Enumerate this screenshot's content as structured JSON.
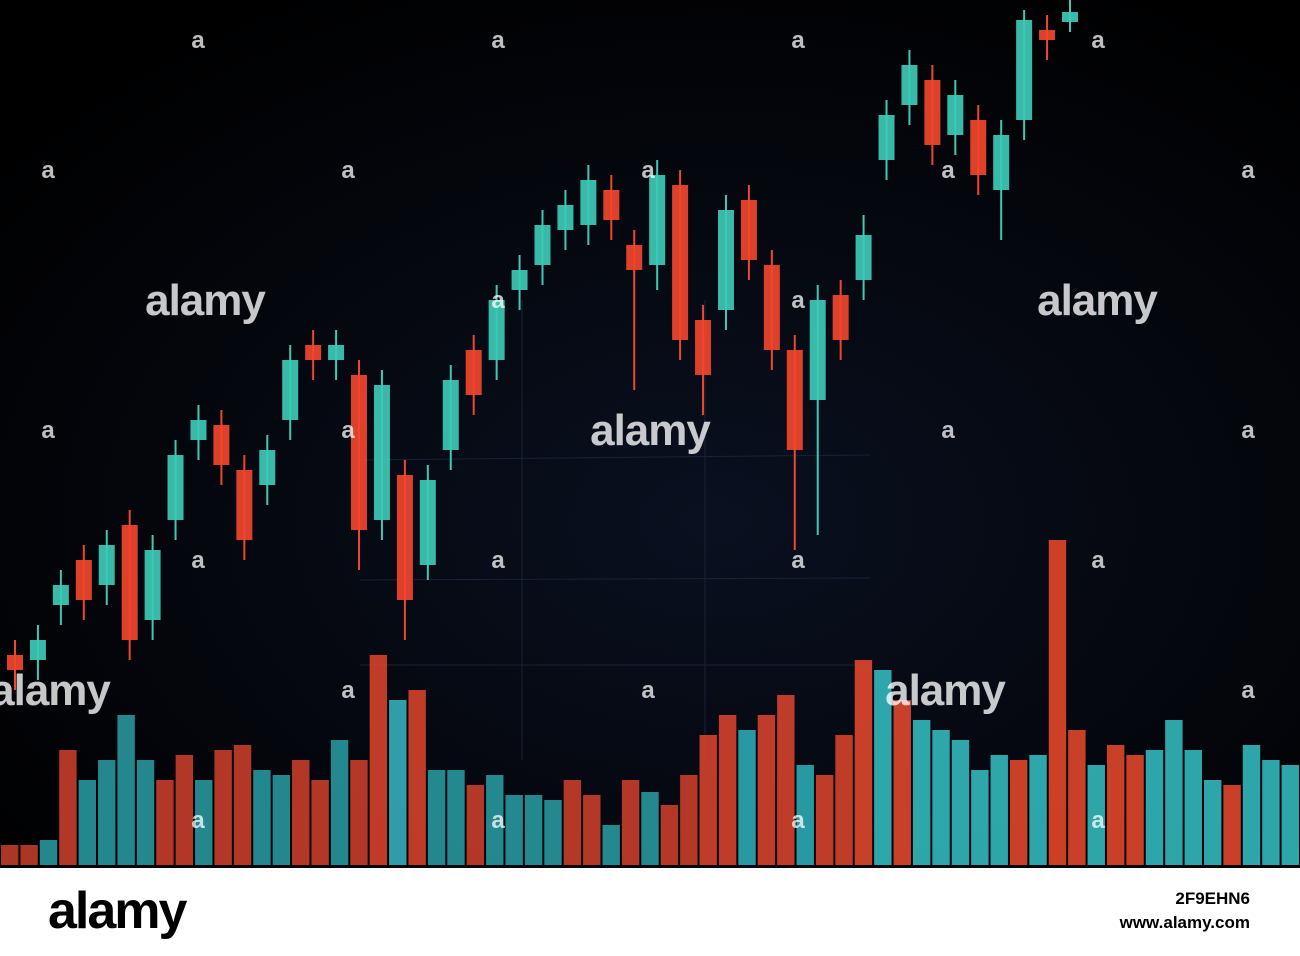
{
  "chart_data": [
    {
      "type": "candlestick",
      "up_color": "#3ec9b5",
      "down_color": "#f0462e",
      "ylim": [
        0,
        956
      ],
      "open": [
        301,
        296,
        351,
        396,
        371,
        431,
        336,
        436,
        516,
        531,
        486,
        471,
        536,
        611,
        596,
        581,
        436,
        481,
        391,
        506,
        606,
        596,
        666,
        691,
        726,
        731,
        766,
        711,
        691,
        771,
        636,
        646,
        756,
        691,
        606,
        556,
        661,
        676,
        796,
        851,
        876,
        821,
        836,
        766,
        836,
        926,
        934
      ],
      "high": [
        316,
        331,
        386,
        411,
        426,
        446,
        421,
        516,
        551,
        546,
        501,
        521,
        611,
        626,
        626,
        596,
        586,
        496,
        491,
        591,
        621,
        671,
        701,
        746,
        766,
        791,
        781,
        726,
        796,
        786,
        651,
        761,
        771,
        706,
        621,
        671,
        676,
        741,
        856,
        906,
        891,
        876,
        851,
        836,
        946,
        941,
        956
      ],
      "low": [
        266,
        276,
        331,
        336,
        351,
        296,
        316,
        416,
        496,
        471,
        396,
        451,
        516,
        576,
        576,
        386,
        416,
        316,
        376,
        486,
        541,
        576,
        646,
        671,
        706,
        711,
        716,
        566,
        666,
        596,
        541,
        626,
        676,
        586,
        406,
        421,
        596,
        656,
        776,
        831,
        791,
        801,
        761,
        716,
        816,
        896,
        924
      ],
      "close": [
        286,
        316,
        371,
        356,
        411,
        316,
        406,
        501,
        536,
        491,
        416,
        506,
        596,
        596,
        611,
        426,
        571,
        356,
        476,
        576,
        561,
        656,
        686,
        731,
        751,
        776,
        736,
        686,
        781,
        616,
        581,
        746,
        696,
        606,
        506,
        656,
        616,
        721,
        841,
        891,
        811,
        861,
        781,
        821,
        936,
        916,
        944
      ]
    },
    {
      "type": "bar",
      "ylim": [
        0,
        865
      ],
      "values": [
        20,
        20,
        25,
        115,
        85,
        105,
        150,
        105,
        85,
        110,
        85,
        115,
        120,
        95,
        90,
        105,
        85,
        125,
        105,
        210,
        165,
        175,
        95,
        95,
        80,
        90,
        70,
        70,
        65,
        85,
        70,
        40,
        85,
        73,
        60,
        90,
        130,
        150,
        135,
        150,
        170,
        100,
        90,
        130,
        205,
        195,
        165,
        145,
        135,
        125,
        95,
        110,
        105,
        110,
        325,
        135,
        100,
        120,
        110,
        115,
        145,
        115,
        85,
        80,
        120,
        105,
        100
      ],
      "colors": [
        "#c8402c",
        "#c8402c",
        "#2a9fa6",
        "#d2412d",
        "#2a9fa6",
        "#2a9fa6",
        "#2a9fa6",
        "#2a9fa6",
        "#d2412d",
        "#d2412d",
        "#2a9fa6",
        "#d2412d",
        "#d2412d",
        "#2a9fa6",
        "#2a9fa6",
        "#d2412d",
        "#d2412d",
        "#2a9fa6",
        "#d2412d",
        "#e0452e",
        "#3ab7c4",
        "#e0452e",
        "#2a9fa6",
        "#2a9fa6",
        "#d2412d",
        "#2a9fa6",
        "#2a9fa6",
        "#2a9fa6",
        "#2a9fa6",
        "#d2412d",
        "#d2412d",
        "#2a9fa6",
        "#d2412d",
        "#2a9fa6",
        "#d2412d",
        "#d2412d",
        "#e0452e",
        "#e0452e",
        "#2fb3bd",
        "#e0452e",
        "#e0452e",
        "#2fb3bd",
        "#e0452e",
        "#e0452e",
        "#ec4a2e",
        "#36c2c6",
        "#ec4a2e",
        "#36c2c6",
        "#36c2c6",
        "#36c2c6",
        "#36c2c6",
        "#36c2c6",
        "#ec4a2e",
        "#36c2c6",
        "#f04a2a",
        "#ec4a2e",
        "#36c2c6",
        "#ec4a2e",
        "#ec4a2e",
        "#36c2c6",
        "#36c2c6",
        "#36c2c6",
        "#36c2c6",
        "#ec4a2e",
        "#36c2c6",
        "#36c2c6",
        "#36c2c6"
      ]
    }
  ],
  "watermark": {
    "logo": "alamy",
    "mark": "a",
    "image_id": "2F9EHN6",
    "url": "www.alamy.com"
  }
}
